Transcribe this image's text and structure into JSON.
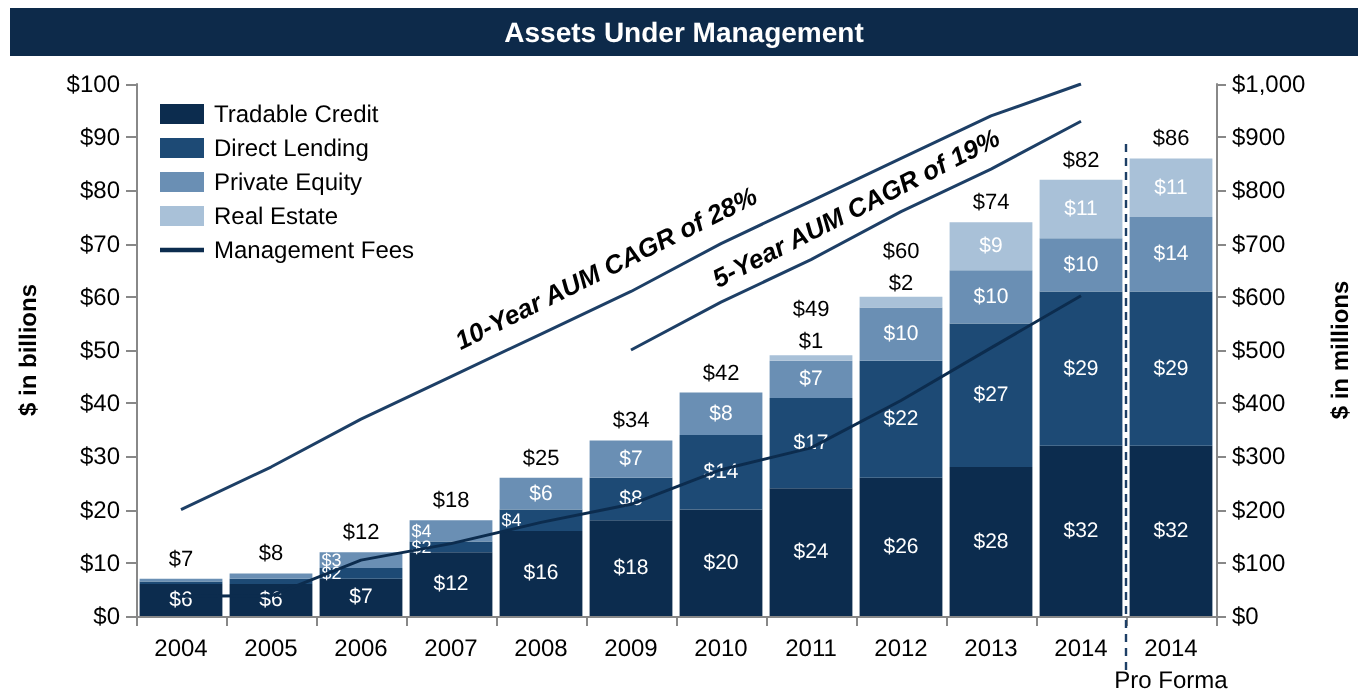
{
  "chart_data": {
    "type": "bar",
    "stacked": true,
    "title": "Assets Under Management",
    "ylabel": "$ in billions",
    "y2label": "$ in millions",
    "categories": [
      "2004",
      "2005",
      "2006",
      "2007",
      "2008",
      "2009",
      "2010",
      "2011",
      "2012",
      "2013",
      "2014",
      "2014\nPro Forma"
    ],
    "series": [
      {
        "name": "Tradable Credit",
        "color": "#0c2c4e",
        "values": [
          6,
          6,
          7,
          12,
          16,
          18,
          20,
          24,
          26,
          28,
          32,
          32
        ],
        "value_labels": [
          "$6",
          "$6",
          "$7",
          "$12",
          "$16",
          "$18",
          "$20",
          "$24",
          "$26",
          "$28",
          "$32",
          "$32"
        ]
      },
      {
        "name": "Direct Lending",
        "color": "#1d4a75",
        "values": [
          0.5,
          1,
          2,
          2,
          4,
          8,
          14,
          17,
          22,
          27,
          29,
          29
        ],
        "value_labels": [
          null,
          null,
          "$2",
          "$2",
          "$4",
          "$8",
          "$14",
          "$17",
          "$22",
          "$27",
          "$29",
          "$29"
        ]
      },
      {
        "name": "Private Equity",
        "color": "#6a8fb4",
        "values": [
          0.5,
          1,
          3,
          4,
          6,
          7,
          8,
          7,
          10,
          10,
          10,
          14
        ],
        "value_labels": [
          null,
          null,
          "$3",
          "$4",
          "$6",
          "$7",
          "$8",
          "$7",
          "$10",
          "$10",
          "$10",
          "$14"
        ]
      },
      {
        "name": "Real Estate",
        "color": "#a9c1d8",
        "values": [
          null,
          null,
          null,
          null,
          null,
          null,
          null,
          1,
          2,
          9,
          11,
          11
        ],
        "value_labels": [
          null,
          null,
          null,
          null,
          null,
          null,
          null,
          "$1",
          "$2",
          "$9",
          "$11",
          "$11"
        ]
      },
      {
        "type": "line",
        "color": "#1d3f66",
        "values": [
          20,
          28,
          37,
          45,
          53,
          61,
          70,
          78,
          86,
          94,
          100,
          null
        ]
      },
      {
        "type": "line",
        "color": "#1d3f66",
        "values": [
          null,
          null,
          null,
          null,
          null,
          50,
          59,
          67,
          76,
          84,
          93,
          null
        ]
      },
      {
        "name": "Management Fees",
        "type": "line",
        "axis": "y2",
        "color": "#0c2c4e",
        "values": [
          37,
          38,
          105,
          136,
          176,
          210,
          275,
          316,
          405,
          504,
          602,
          null
        ]
      }
    ],
    "totals": [
      "$7",
      "$8",
      "$12",
      "$18",
      "$25",
      "$34",
      "$42",
      "$49",
      "$60",
      "$74",
      "$82",
      "$86"
    ],
    "ylim": [
      0,
      100
    ],
    "yticks": [
      {
        "value": 0,
        "label": "$0"
      },
      {
        "value": 10,
        "label": "$10"
      },
      {
        "value": 20,
        "label": "$20"
      },
      {
        "value": 30,
        "label": "$30"
      },
      {
        "value": 40,
        "label": "$40"
      },
      {
        "value": 50,
        "label": "$50"
      },
      {
        "value": 60,
        "label": "$60"
      },
      {
        "value": 70,
        "label": "$70"
      },
      {
        "value": 80,
        "label": "$80"
      },
      {
        "value": 90,
        "label": "$90"
      },
      {
        "value": 100,
        "label": "$100"
      }
    ],
    "y2lim": [
      0,
      1000
    ],
    "y2ticks": [
      {
        "value": 0,
        "label": "$0"
      },
      {
        "value": 100,
        "label": "$100"
      },
      {
        "value": 200,
        "label": "$200"
      },
      {
        "value": 300,
        "label": "$300"
      },
      {
        "value": 400,
        "label": "$400"
      },
      {
        "value": 500,
        "label": "$500"
      },
      {
        "value": 600,
        "label": "$600"
      },
      {
        "value": 700,
        "label": "$700"
      },
      {
        "value": 800,
        "label": "$800"
      },
      {
        "value": 900,
        "label": "$900"
      },
      {
        "value": 1000,
        "label": "$1,000"
      }
    ],
    "annotations": [
      "10-Year AUM CAGR of 28%",
      "5-Year AUM CAGR of 19%"
    ],
    "legend": "top left",
    "grid": false,
    "marker": "none",
    "line_style": "solid"
  }
}
